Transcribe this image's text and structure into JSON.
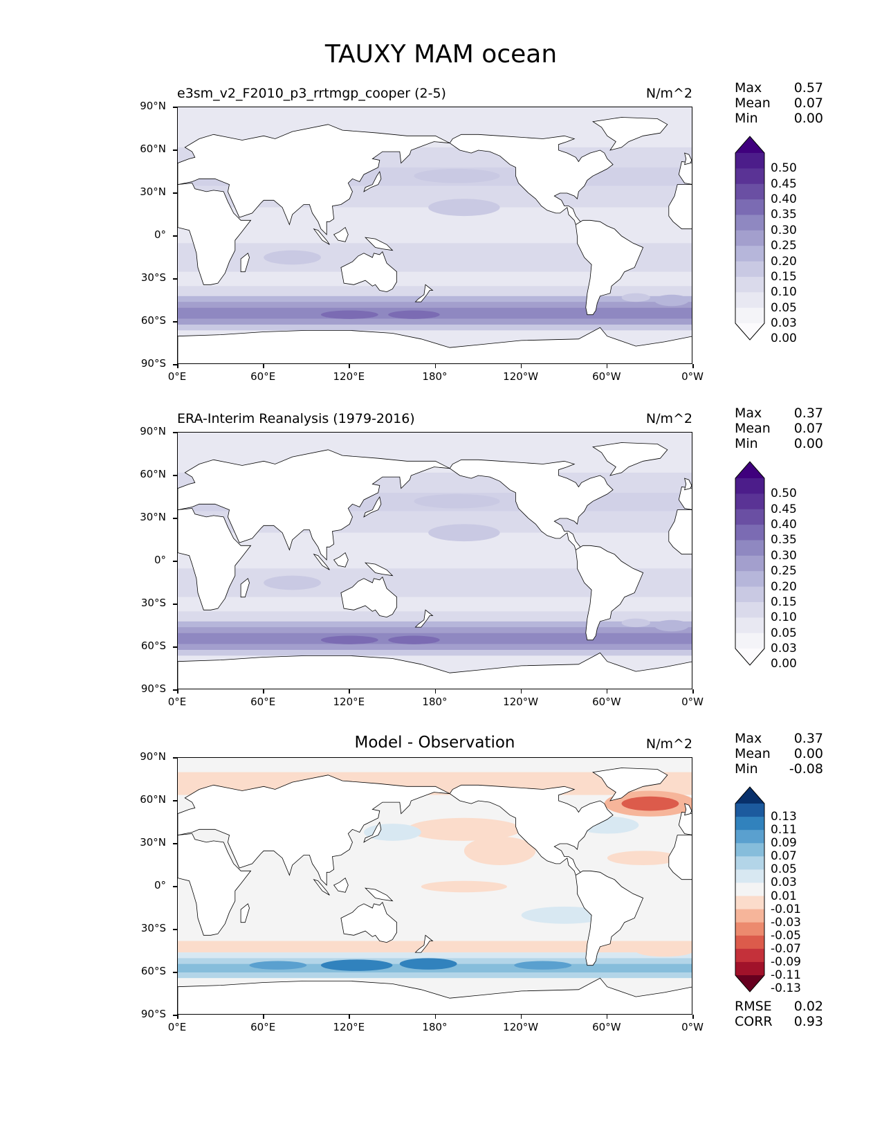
{
  "figure": {
    "title": "TAUXY MAM ocean",
    "y_ticks": [
      "90°N",
      "60°N",
      "30°N",
      "0°",
      "30°S",
      "60°S",
      "90°S"
    ],
    "x_ticks": [
      "0°E",
      "60°E",
      "120°E",
      "180°",
      "120°W",
      "60°W",
      "0°W"
    ]
  },
  "chart_data": [
    {
      "type": "heatmap",
      "panel": "test",
      "title": "e3sm_v2_F2010_p3_rrtmgp_cooper (2-5)",
      "units": "N/m^2",
      "stats": [
        {
          "label": "Max",
          "value": "0.57"
        },
        {
          "label": "Mean",
          "value": "0.07"
        },
        {
          "label": "Min",
          "value": "0.00"
        }
      ],
      "colorbar_levels": [
        "0.50",
        "0.45",
        "0.40",
        "0.35",
        "0.30",
        "0.25",
        "0.20",
        "0.15",
        "0.10",
        "0.05",
        "0.03",
        "0.00"
      ],
      "colorbar_colors": [
        "#3f007d",
        "#4c1d8a",
        "#5a3395",
        "#6a4fa3",
        "#7b6bb3",
        "#8f88c1",
        "#a39fcd",
        "#b6b6da",
        "#c9c9e3",
        "#dadaeb",
        "#e8e8f2",
        "#f4f4f8",
        "#fcfbfd"
      ],
      "xlim": [
        0,
        360
      ],
      "ylim": [
        -90,
        90
      ]
    },
    {
      "type": "heatmap",
      "panel": "reference",
      "title": "ERA-Interim Reanalysis (1979-2016)",
      "units": "N/m^2",
      "stats": [
        {
          "label": "Max",
          "value": "0.37"
        },
        {
          "label": "Mean",
          "value": "0.07"
        },
        {
          "label": "Min",
          "value": "0.00"
        }
      ],
      "colorbar_levels": [
        "0.50",
        "0.45",
        "0.40",
        "0.35",
        "0.30",
        "0.25",
        "0.20",
        "0.15",
        "0.10",
        "0.05",
        "0.03",
        "0.00"
      ],
      "colorbar_colors": [
        "#3f007d",
        "#4c1d8a",
        "#5a3395",
        "#6a4fa3",
        "#7b6bb3",
        "#8f88c1",
        "#a39fcd",
        "#b6b6da",
        "#c9c9e3",
        "#dadaeb",
        "#e8e8f2",
        "#f4f4f8",
        "#fcfbfd"
      ],
      "xlim": [
        0,
        360
      ],
      "ylim": [
        -90,
        90
      ]
    },
    {
      "type": "heatmap",
      "panel": "difference",
      "title": "Model - Observation",
      "units": "N/m^2",
      "stats": [
        {
          "label": "Max",
          "value": "0.37"
        },
        {
          "label": "Mean",
          "value": "0.00"
        },
        {
          "label": "Min",
          "value": "-0.08"
        }
      ],
      "colorbar_levels": [
        "0.13",
        "0.11",
        "0.09",
        "0.07",
        "0.05",
        "0.03",
        "0.01",
        "-0.01",
        "-0.03",
        "-0.05",
        "-0.07",
        "-0.09",
        "-0.11",
        "-0.13"
      ],
      "colorbar_colors": [
        "#08306b",
        "#1c5a9e",
        "#3182bd",
        "#5aa0cf",
        "#86bddb",
        "#b3d5e8",
        "#d8e8f2",
        "#f4f4f4",
        "#fbdccb",
        "#f6b59a",
        "#ec8a6e",
        "#dc5b4b",
        "#c4313a",
        "#a1122a",
        "#67001f"
      ],
      "metrics": [
        {
          "label": "RMSE",
          "value": "0.02"
        },
        {
          "label": "CORR",
          "value": "0.93"
        }
      ],
      "xlim": [
        0,
        360
      ],
      "ylim": [
        -90,
        90
      ]
    }
  ]
}
